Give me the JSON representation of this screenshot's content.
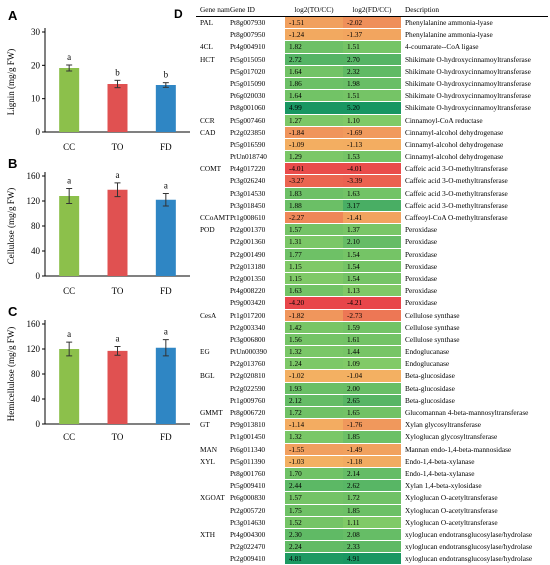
{
  "panels": {
    "A": {
      "letter": "A",
      "ylabel": "Lignin (mg/g FW)",
      "ylim": [
        0,
        30
      ],
      "ticks": [
        0,
        10,
        20,
        30
      ],
      "categories": [
        "CC",
        "TO",
        "FD"
      ],
      "values": [
        19.2,
        14.4,
        14.1
      ],
      "errors": [
        0.9,
        1.1,
        0.7
      ],
      "sig": [
        "a",
        "b",
        "b"
      ],
      "colors": [
        "#8cc04b",
        "#e05151",
        "#2f86c4"
      ]
    },
    "B": {
      "letter": "B",
      "ylabel": "Cellulose (mg/g FW)",
      "ylim": [
        0,
        160
      ],
      "ticks": [
        0,
        40,
        80,
        120,
        160
      ],
      "categories": [
        "CC",
        "TO",
        "FD"
      ],
      "values": [
        128,
        138,
        122
      ],
      "errors": [
        12,
        11,
        10
      ],
      "sig": [
        "a",
        "a",
        "a"
      ],
      "colors": [
        "#8cc04b",
        "#e05151",
        "#2f86c4"
      ]
    },
    "C": {
      "letter": "C",
      "ylabel": "Hemicellulose (mg/g FW)",
      "ylim": [
        0,
        160
      ],
      "ticks": [
        0,
        40,
        80,
        120,
        160
      ],
      "categories": [
        "CC",
        "TO",
        "FD"
      ],
      "values": [
        120,
        117,
        122
      ],
      "errors": [
        11,
        7,
        13
      ],
      "sig": [
        "a",
        "a",
        "a"
      ],
      "colors": [
        "#8cc04b",
        "#e05151",
        "#2f86c4"
      ]
    }
  },
  "heatmap": {
    "letter": "D",
    "headers": {
      "gene": "Gene name",
      "id": "Gene ID",
      "to": "log2(TO/CC)",
      "fd": "log2(FD/CC)",
      "desc": "Description"
    },
    "rows": [
      {
        "gene": "PAL",
        "id": "Pt8g007930",
        "to": "-1.51",
        "fd": "-2.02",
        "desc": "Phenylalanine ammonia-lyase"
      },
      {
        "gene": "",
        "id": "Pt8g007950",
        "to": "-1.24",
        "fd": "-1.37",
        "desc": "Phenylalanine ammonia-lyase"
      },
      {
        "gene": "4CL",
        "id": "Pt4g004910",
        "to": "1.82",
        "fd": "1.51",
        "desc": "4-coumarate--CoA ligase"
      },
      {
        "gene": "HCT",
        "id": "Pt5g015050",
        "to": "2.72",
        "fd": "2.70",
        "desc": "Shikimate O-hydroxycinnamoyltransferase"
      },
      {
        "gene": "",
        "id": "Pt5g017020",
        "to": "1.64",
        "fd": "2.32",
        "desc": "Shikimate O-hydroxycinnamoyltransferase"
      },
      {
        "gene": "",
        "id": "Pt5g015090",
        "to": "1.86",
        "fd": "1.98",
        "desc": "Shikimate O-hydroxycinnamoyltransferase"
      },
      {
        "gene": "",
        "id": "Pt6g020030",
        "to": "1.64",
        "fd": "1.51",
        "desc": "Shikimate O-hydroxycinnamoyltransferase"
      },
      {
        "gene": "",
        "id": "Pt8g001060",
        "to": "4.99",
        "fd": "5.20",
        "desc": "Shikimate O-hydroxycinnamoyltransferase"
      },
      {
        "gene": "CCR",
        "id": "Pt5g007460",
        "to": "1.27",
        "fd": "1.10",
        "desc": "Cinnamoyl-CoA reductase"
      },
      {
        "gene": "CAD",
        "id": "Pt2g023850",
        "to": "-1.84",
        "fd": "-1.69",
        "desc": "Cinnamyl-alcohol dehydrogenase"
      },
      {
        "gene": "",
        "id": "Pt5g016590",
        "to": "-1.09",
        "fd": "-1.13",
        "desc": "Cinnamyl-alcohol dehydrogenase"
      },
      {
        "gene": "",
        "id": "PtUn018740",
        "to": "1.29",
        "fd": "1.53",
        "desc": "Cinnamyl-alcohol dehydrogenase"
      },
      {
        "gene": "COMT",
        "id": "Pt4g017220",
        "to": "-4.01",
        "fd": "-4.01",
        "desc": "Caffeic acid 3-O-methyltransferase"
      },
      {
        "gene": "",
        "id": "Pt3g026240",
        "to": "-3.27",
        "fd": "-3.39",
        "desc": "Caffeic acid 3-O-methyltransferase"
      },
      {
        "gene": "",
        "id": "Pt3g014530",
        "to": "1.83",
        "fd": "1.63",
        "desc": "Caffeic acid 3-O-methyltransferase"
      },
      {
        "gene": "",
        "id": "Pt3g018450",
        "to": "1.88",
        "fd": "3.17",
        "desc": "Caffeic acid 3-O-methyltransferase"
      },
      {
        "gene": "CCoAMT",
        "id": "Pt1g008610",
        "to": "-2.27",
        "fd": "-1.41",
        "desc": "Caffeoyl-CoA O-methyltransferase"
      },
      {
        "gene": "POD",
        "id": "Pt2g001370",
        "to": "1.57",
        "fd": "1.37",
        "desc": "Peroxidase"
      },
      {
        "gene": "",
        "id": "Pt2g001360",
        "to": "1.31",
        "fd": "2.10",
        "desc": "Peroxidase"
      },
      {
        "gene": "",
        "id": "Pt2g001490",
        "to": "1.77",
        "fd": "1.54",
        "desc": "Peroxidase"
      },
      {
        "gene": "",
        "id": "Pt2g013180",
        "to": "1.15",
        "fd": "1.54",
        "desc": "Peroxidase"
      },
      {
        "gene": "",
        "id": "Pt2g001350",
        "to": "1.15",
        "fd": "1.54",
        "desc": "Peroxidase"
      },
      {
        "gene": "",
        "id": "Pt4g008220",
        "to": "1.63",
        "fd": "1.13",
        "desc": "Peroxidase"
      },
      {
        "gene": "",
        "id": "Pt9g003420",
        "to": "-4.20",
        "fd": "-4.21",
        "desc": "Peroxidase"
      },
      {
        "gene": "CesA",
        "id": "Pt1g017200",
        "to": "-1.82",
        "fd": "-2.73",
        "desc": "Cellulose synthase"
      },
      {
        "gene": "",
        "id": "Pt2g003340",
        "to": "1.42",
        "fd": "1.59",
        "desc": "Cellulose synthase"
      },
      {
        "gene": "",
        "id": "Pt3g006800",
        "to": "1.56",
        "fd": "1.61",
        "desc": "Cellulose synthase"
      },
      {
        "gene": "EG",
        "id": "PtUn000390",
        "to": "1.32",
        "fd": "1.44",
        "desc": "Endoglucanase"
      },
      {
        "gene": "",
        "id": "Pt2g013760",
        "to": "1.24",
        "fd": "1.09",
        "desc": "Endoglucanase"
      },
      {
        "gene": "BGL",
        "id": "Pt2g020810",
        "to": "-1.02",
        "fd": "-1.04",
        "desc": "Beta-glucosidase"
      },
      {
        "gene": "",
        "id": "Pt2g022590",
        "to": "1.93",
        "fd": "2.00",
        "desc": "Beta-glucosidase"
      },
      {
        "gene": "",
        "id": "Pt1g009760",
        "to": "2.12",
        "fd": "2.65",
        "desc": "Beta-glucosidase"
      },
      {
        "gene": "GMMT",
        "id": "Pt8g006720",
        "to": "1.72",
        "fd": "1.65",
        "desc": "Glucomannan 4-beta-mannosyltransferase"
      },
      {
        "gene": "GT",
        "id": "Pt9g013810",
        "to": "-1.14",
        "fd": "-1.76",
        "desc": "Xylan glycosyltransferase"
      },
      {
        "gene": "",
        "id": "Pt1g001450",
        "to": "1.32",
        "fd": "1.85",
        "desc": "Xyloglucan glycosyltransferase"
      },
      {
        "gene": "MAN",
        "id": "Pt6g011340",
        "to": "-1.55",
        "fd": "-1.49",
        "desc": "Mannan endo-1,4-beta-mannosidase"
      },
      {
        "gene": "XYL",
        "id": "Pt5g011390",
        "to": "-1.03",
        "fd": "-1.18",
        "desc": "Endo-1,4-beta-xylanase"
      },
      {
        "gene": "",
        "id": "Pt8g001760",
        "to": "1.70",
        "fd": "2.14",
        "desc": "Endo-1,4-beta-xylanase"
      },
      {
        "gene": "",
        "id": "Pt5g009410",
        "to": "2.44",
        "fd": "2.62",
        "desc": "Xylan 1,4-beta-xylosidase"
      },
      {
        "gene": "XGOAT",
        "id": "Pt6g000830",
        "to": "1.57",
        "fd": "1.72",
        "desc": "Xyloglucan O-acetyltransferase"
      },
      {
        "gene": "",
        "id": "Pt2g005720",
        "to": "1.75",
        "fd": "1.85",
        "desc": "Xyloglucan O-acetyltransferase"
      },
      {
        "gene": "",
        "id": "Pt3g014630",
        "to": "1.52",
        "fd": "1.11",
        "desc": "Xyloglucan O-acetyltransferase"
      },
      {
        "gene": "XTH",
        "id": "Pt4g004300",
        "to": "2.30",
        "fd": "2.08",
        "desc": "xyloglucan endotransglucosylase/hydrolase"
      },
      {
        "gene": "",
        "id": "Pt2g022470",
        "to": "2.24",
        "fd": "2.33",
        "desc": "xyloglucan endotransglucosylase/hydrolase"
      },
      {
        "gene": "",
        "id": "Pt2g009410",
        "to": "4.81",
        "fd": "4.91",
        "desc": "xyloglucan endotransglucosylase/hydrolase"
      }
    ]
  },
  "chart_data": [
    {
      "type": "bar",
      "title": "",
      "ylabel": "Lignin (mg/g FW)",
      "categories": [
        "CC",
        "TO",
        "FD"
      ],
      "values": [
        19.2,
        14.4,
        14.1
      ],
      "errors": [
        0.9,
        1.1,
        0.7
      ],
      "ylim": [
        0,
        30
      ],
      "annotations": [
        "a",
        "b",
        "b"
      ]
    },
    {
      "type": "bar",
      "title": "",
      "ylabel": "Cellulose (mg/g FW)",
      "categories": [
        "CC",
        "TO",
        "FD"
      ],
      "values": [
        128,
        138,
        122
      ],
      "errors": [
        12,
        11,
        10
      ],
      "ylim": [
        0,
        160
      ],
      "annotations": [
        "a",
        "a",
        "a"
      ]
    },
    {
      "type": "bar",
      "title": "",
      "ylabel": "Hemicellulose (mg/g FW)",
      "categories": [
        "CC",
        "TO",
        "FD"
      ],
      "values": [
        120,
        117,
        122
      ],
      "errors": [
        11,
        7,
        13
      ],
      "ylim": [
        0,
        160
      ],
      "annotations": [
        "a",
        "a",
        "a"
      ]
    },
    {
      "type": "heatmap",
      "title": "",
      "columns": [
        "log2(TO/CC)",
        "log2(FD/CC)"
      ],
      "rows": [
        "Pt8g007930",
        "Pt8g007950",
        "Pt4g004910",
        "Pt5g015050",
        "Pt5g017020",
        "Pt5g015090",
        "Pt6g020030",
        "Pt8g001060",
        "Pt5g007460",
        "Pt2g023850",
        "Pt5g016590",
        "PtUn018740",
        "Pt4g017220",
        "Pt3g026240",
        "Pt3g014530",
        "Pt3g018450",
        "Pt1g008610",
        "Pt2g001370",
        "Pt2g001360",
        "Pt2g001490",
        "Pt2g013180",
        "Pt2g001350",
        "Pt4g008220",
        "Pt9g003420",
        "Pt1g017200",
        "Pt2g003340",
        "Pt3g006800",
        "PtUn000390",
        "Pt2g013760",
        "Pt2g020810",
        "Pt2g022590",
        "Pt1g009760",
        "Pt8g006720",
        "Pt9g013810",
        "Pt1g001450",
        "Pt6g011340",
        "Pt5g011390",
        "Pt8g001760",
        "Pt5g009410",
        "Pt6g000830",
        "Pt2g005720",
        "Pt3g014630",
        "Pt4g004300",
        "Pt2g022470",
        "Pt2g009410"
      ],
      "values_to": [
        -1.51,
        -1.24,
        1.82,
        2.72,
        1.64,
        1.86,
        1.64,
        4.99,
        1.27,
        -1.84,
        -1.09,
        1.29,
        -4.01,
        -3.27,
        1.83,
        1.88,
        -2.27,
        1.57,
        1.31,
        1.77,
        1.15,
        1.15,
        1.63,
        -4.2,
        -1.82,
        1.42,
        1.56,
        1.32,
        1.24,
        -1.02,
        1.93,
        2.12,
        1.72,
        -1.14,
        1.32,
        -1.55,
        -1.03,
        1.7,
        2.44,
        1.57,
        1.75,
        1.52,
        2.3,
        2.24,
        4.81
      ],
      "values_fd": [
        -2.02,
        -1.37,
        1.51,
        2.7,
        2.32,
        1.98,
        1.51,
        5.2,
        1.1,
        -1.69,
        -1.13,
        1.53,
        -4.01,
        -3.39,
        1.63,
        3.17,
        -1.41,
        1.37,
        2.1,
        1.54,
        1.54,
        1.54,
        1.13,
        -4.21,
        -2.73,
        1.59,
        1.61,
        1.44,
        1.09,
        -1.04,
        2.0,
        2.65,
        1.65,
        -1.76,
        1.85,
        -1.49,
        -1.18,
        2.14,
        2.62,
        1.72,
        1.85,
        1.11,
        2.08,
        2.33,
        4.91
      ]
    }
  ]
}
